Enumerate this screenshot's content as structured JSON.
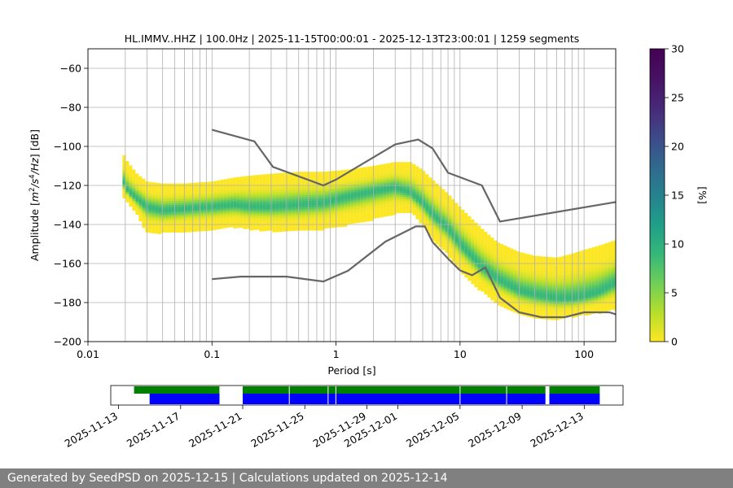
{
  "footer_text": "Generated by SeedPSD on 2025-12-15 | Calculations updated on 2025-12-14",
  "chart_data": [
    {
      "type": "heatmap",
      "title": "HL.IMMV..HHZ | 100.0Hz | 2025-11-15T00:00:01 - 2025-12-13T23:00:01 | 1259 segments",
      "xlabel": "Period [s]",
      "ylabel_parts": [
        "Amplitude [",
        "m",
        "2",
        "/s",
        "4",
        "/Hz",
        "] [dB]"
      ],
      "x_scale": "log",
      "xlim": [
        0.01,
        180
      ],
      "ylim": [
        -200,
        -50
      ],
      "x_ticks": [
        {
          "value": 0.01,
          "label": "0.01"
        },
        {
          "value": 0.1,
          "label": "0.1"
        },
        {
          "value": 1,
          "label": "1"
        },
        {
          "value": 10,
          "label": "10"
        },
        {
          "value": 100,
          "label": "100"
        }
      ],
      "y_ticks": [
        -200,
        -180,
        -160,
        -140,
        -120,
        -100,
        -80,
        -60
      ],
      "grid": true,
      "colorbar": {
        "label": "[%]",
        "range": [
          0,
          30
        ],
        "ticks": [
          0,
          5,
          10,
          15,
          20,
          25,
          30
        ],
        "colormap": "viridis_r"
      },
      "density_ridge": {
        "period": [
          0.019,
          0.021,
          0.025,
          0.03,
          0.04,
          0.06,
          0.1,
          0.15,
          0.2,
          0.3,
          0.5,
          0.8,
          1.2,
          2,
          3,
          4,
          5,
          6,
          8,
          10,
          15,
          20,
          30,
          40,
          60,
          80,
          100,
          130,
          180
        ],
        "mode": [
          -117,
          -123,
          -127,
          -131,
          -133,
          -132,
          -131,
          -130,
          -131,
          -131,
          -130,
          -129,
          -126,
          -123,
          -121,
          -124,
          -129,
          -135,
          -142,
          -150,
          -162,
          -168,
          -174,
          -176,
          -178,
          -178,
          -177,
          -175,
          -170
        ],
        "upper": [
          -103,
          -108,
          -114,
          -118,
          -119,
          -119,
          -118,
          -116,
          -115,
          -114,
          -113,
          -113,
          -112,
          -110,
          -108,
          -108,
          -112,
          -117,
          -124,
          -131,
          -142,
          -149,
          -154,
          -156,
          -157,
          -155,
          -153,
          -151,
          -148
        ],
        "lower": [
          -125,
          -128,
          -135,
          -144,
          -144,
          -143,
          -142,
          -141,
          -142,
          -143,
          -143,
          -142,
          -140,
          -137,
          -134,
          -133,
          -140,
          -147,
          -155,
          -163,
          -174,
          -180,
          -185,
          -187,
          -188,
          -187,
          -186,
          -185,
          -183
        ]
      },
      "series": [
        {
          "period": [
            0.1,
            0.22,
            0.31,
            0.79,
            1.0,
            3.0,
            4.6,
            6.0,
            8.0,
            15.0,
            21.0,
            180.0
          ],
          "values": [
            -91.5,
            -97.4,
            -110.5,
            -120.0,
            -117.0,
            -99.0,
            -96.5,
            -101.0,
            -113.5,
            -120.0,
            -138.5,
            -128.5
          ]
        },
        {
          "period": [
            0.1,
            0.17,
            0.4,
            0.79,
            1.25,
            2.5,
            4.4,
            5.2,
            6.0,
            8.0,
            10.0,
            12.5,
            16.0,
            21.0,
            30.0,
            45.0,
            70.0,
            100.0,
            160.0,
            180.0
          ],
          "values": [
            -168.0,
            -166.7,
            -166.7,
            -169.2,
            -163.7,
            -148.8,
            -141.0,
            -141.0,
            -149.0,
            -157.5,
            -163.5,
            -166.0,
            -162.0,
            -177.5,
            -185.0,
            -187.5,
            -187.5,
            -185.0,
            -185.0,
            -186.0
          ]
        }
      ],
      "series_color": "#666666"
    },
    {
      "type": "bar",
      "orientation": "timeline",
      "x_tick_labels": [
        "2025-11-13",
        "2025-11-17",
        "2025-11-21",
        "2025-11-25",
        "2025-11-29",
        "2025-12-01",
        "2025-12-05",
        "2025-12-09",
        "2025-12-13"
      ],
      "x_tick_dates": [
        "2025-11-13",
        "2025-11-17",
        "2025-11-21",
        "2025-11-25",
        "2025-11-29",
        "2025-12-01",
        "2025-12-05",
        "2025-12-09",
        "2025-12-13"
      ],
      "date_range": [
        "2025-11-12T12:00",
        "2025-12-15T12:00"
      ],
      "series": [
        {
          "color": "#008000",
          "intervals": [
            [
              "2025-11-14T00:00",
              "2025-11-19T12:00"
            ],
            [
              "2025-11-21T00:00",
              "2025-12-10T12:00"
            ],
            [
              "2025-12-10T18:00",
              "2025-12-14T00:00"
            ]
          ]
        },
        {
          "color": "#0000ff",
          "intervals": [
            [
              "2025-11-15T00:00",
              "2025-11-19T12:00"
            ],
            [
              "2025-11-21T00:00",
              "2025-12-10T12:00"
            ],
            [
              "2025-12-10T18:00",
              "2025-12-14T00:00"
            ]
          ]
        }
      ],
      "gap_lines": [
        "2025-11-24T00:00",
        "2025-11-26T12:00",
        "2025-11-27T00:00",
        "2025-12-05T00:00",
        "2025-12-08T00:00"
      ]
    }
  ]
}
